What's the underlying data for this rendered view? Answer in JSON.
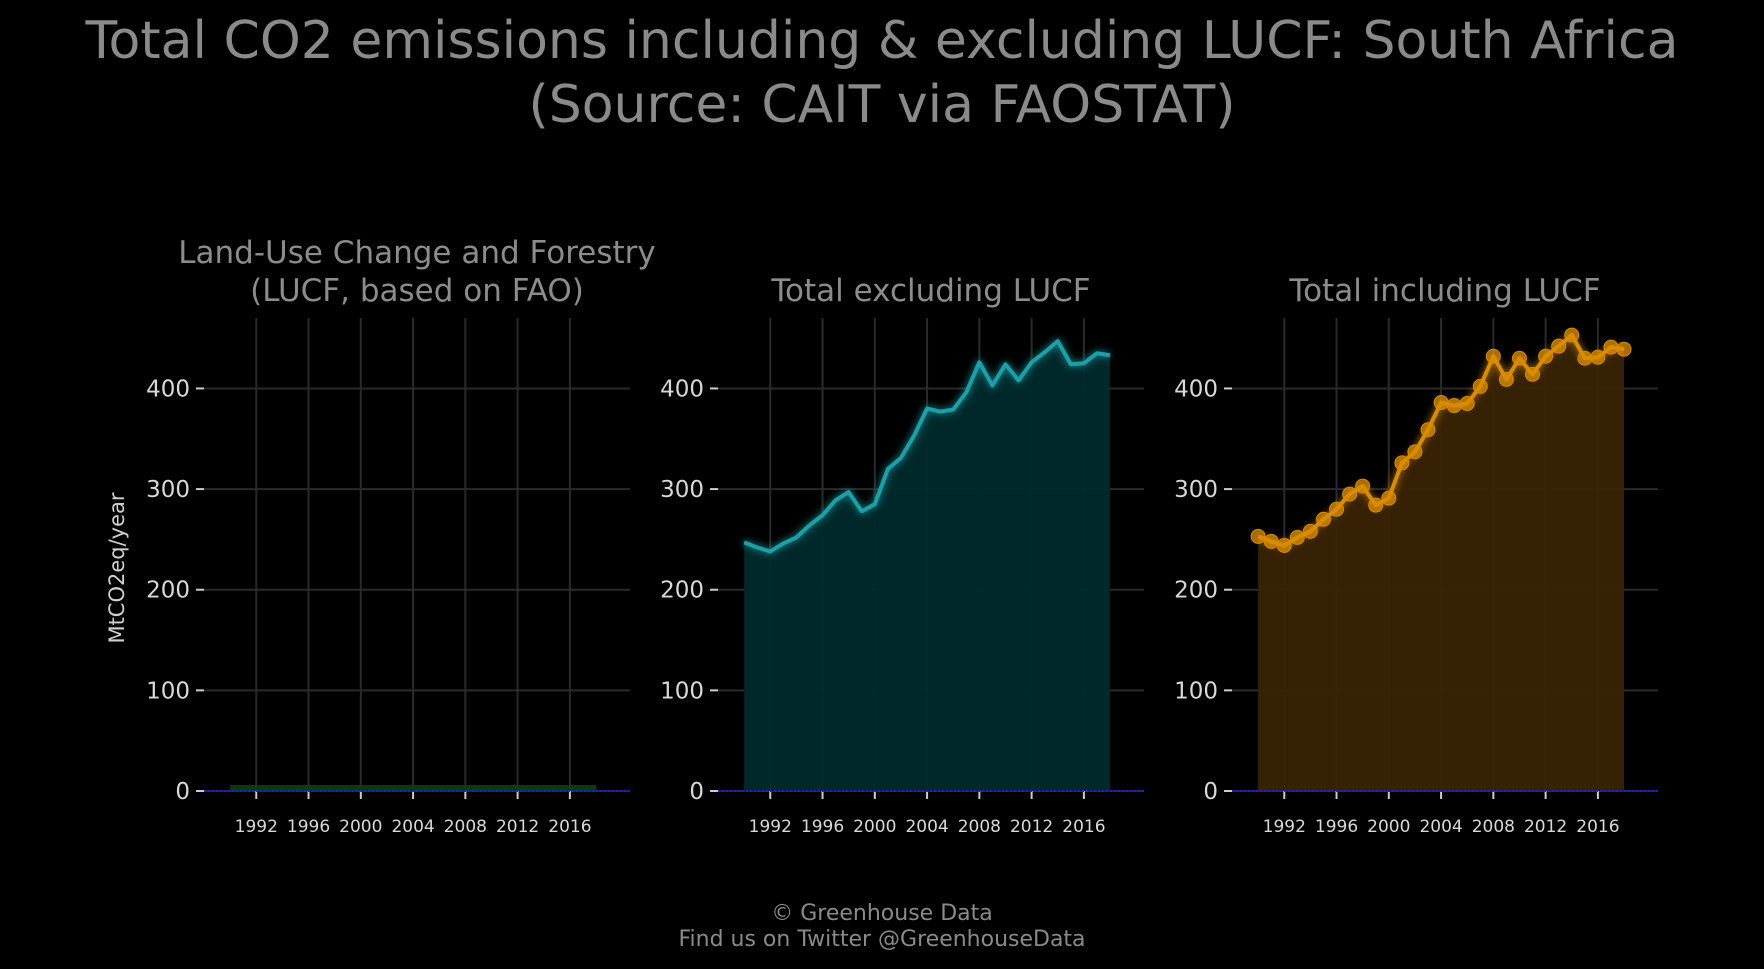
{
  "title_line1": "Total CO2 emissions including & excluding LUCF: South Africa",
  "title_line2": "(Source: CAIT via FAOSTAT)",
  "footer_line1": "© Greenhouse Data",
  "footer_line2": "Find us on Twitter @GreenhouseData",
  "ylabel": "MtCO2eq/year",
  "chart_data": [
    {
      "type": "area",
      "title_line1": "Land-Use Change and Forestry",
      "title_line2": "(LUCF, based on FAO)",
      "color": "#1f7a1f",
      "fill": "#0d3d0d",
      "markers": false,
      "x": [
        1990,
        1991,
        1992,
        1993,
        1994,
        1995,
        1996,
        1997,
        1998,
        1999,
        2000,
        2001,
        2002,
        2003,
        2004,
        2005,
        2006,
        2007,
        2008,
        2009,
        2010,
        2011,
        2012,
        2013,
        2014,
        2015,
        2016,
        2017,
        2018
      ],
      "values": [
        6,
        6,
        6,
        6,
        6,
        6,
        6,
        6,
        6,
        6,
        6,
        6,
        6,
        6,
        6,
        6,
        6,
        6,
        6,
        6,
        6,
        6,
        6,
        6,
        6,
        6,
        6,
        6,
        6
      ],
      "xticks": [
        1992,
        1996,
        2000,
        2004,
        2008,
        2012,
        2016
      ],
      "yticks": [
        0,
        100,
        200,
        300,
        400
      ],
      "ylim": [
        0,
        470
      ]
    },
    {
      "type": "area",
      "title_line1": "",
      "title_line2": "Total excluding LUCF",
      "color": "#1aa0a8",
      "fill": "#002a2c",
      "markers": false,
      "x": [
        1990,
        1991,
        1992,
        1993,
        1994,
        1995,
        1996,
        1997,
        1998,
        1999,
        2000,
        2001,
        2002,
        2003,
        2004,
        2005,
        2006,
        2007,
        2008,
        2009,
        2010,
        2011,
        2012,
        2013,
        2014,
        2015,
        2016,
        2017,
        2018
      ],
      "values": [
        247,
        242,
        238,
        246,
        252,
        264,
        274,
        289,
        297,
        278,
        285,
        320,
        331,
        353,
        380,
        377,
        379,
        396,
        426,
        403,
        424,
        408,
        426,
        436,
        447,
        424,
        425,
        435,
        433
      ],
      "xticks": [
        1992,
        1996,
        2000,
        2004,
        2008,
        2012,
        2016
      ],
      "yticks": [
        0,
        100,
        200,
        300,
        400
      ],
      "ylim": [
        0,
        470
      ]
    },
    {
      "type": "area",
      "title_line1": "",
      "title_line2": "Total including LUCF",
      "color": "#d98c00",
      "fill": "#3a2304",
      "markers": true,
      "x": [
        1990,
        1991,
        1992,
        1993,
        1994,
        1995,
        1996,
        1997,
        1998,
        1999,
        2000,
        2001,
        2002,
        2003,
        2004,
        2005,
        2006,
        2007,
        2008,
        2009,
        2010,
        2011,
        2012,
        2013,
        2014,
        2015,
        2016,
        2017,
        2018
      ],
      "values": [
        253,
        248,
        244,
        252,
        258,
        270,
        280,
        295,
        303,
        284,
        291,
        326,
        337,
        359,
        386,
        383,
        385,
        402,
        432,
        409,
        430,
        414,
        432,
        442,
        453,
        430,
        431,
        441,
        439
      ],
      "xticks": [
        1992,
        1996,
        2000,
        2004,
        2008,
        2012,
        2016
      ],
      "yticks": [
        0,
        100,
        200,
        300,
        400
      ],
      "ylim": [
        0,
        470
      ]
    }
  ]
}
